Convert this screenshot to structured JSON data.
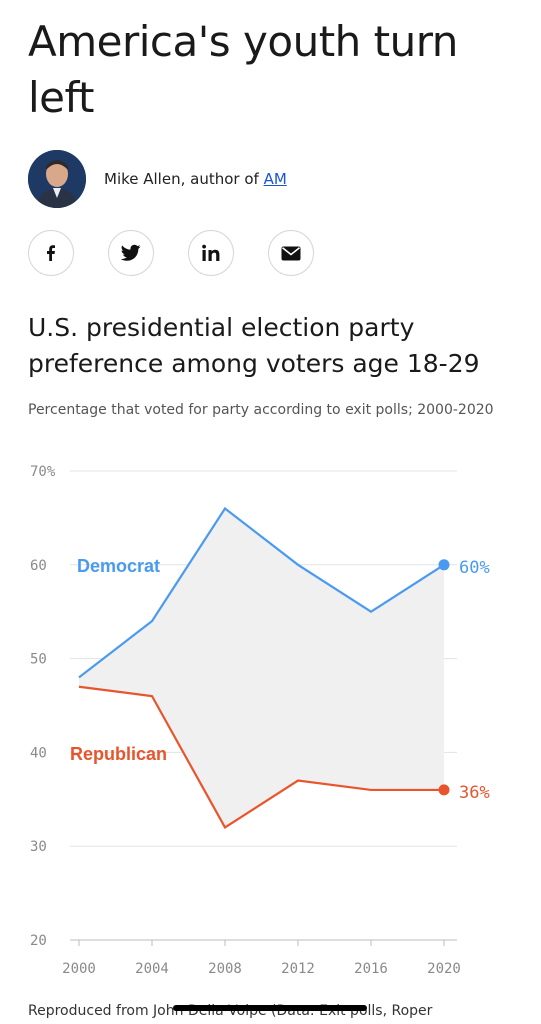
{
  "article": {
    "headline": "America's youth turn left",
    "byline_prefix": "Mike Allen, author of ",
    "byline_link": "AM"
  },
  "share": [
    {
      "name": "facebook",
      "icon": "facebook-icon"
    },
    {
      "name": "twitter",
      "icon": "twitter-icon"
    },
    {
      "name": "linkedin",
      "icon": "linkedin-icon"
    },
    {
      "name": "email",
      "icon": "email-icon"
    }
  ],
  "chart_data": {
    "type": "line",
    "title": "U.S. presidential election party preference among voters age 18-29",
    "subtitle": "Percentage that voted for party according to exit polls; 2000-2020",
    "x": [
      2000,
      2004,
      2008,
      2012,
      2016,
      2020
    ],
    "xlim": [
      2000,
      2020
    ],
    "ylim": [
      20,
      70
    ],
    "yticks": [
      20,
      30,
      40,
      50,
      60,
      70
    ],
    "ytick_labels": [
      "20",
      "30",
      "40",
      "50",
      "60",
      "70%"
    ],
    "xtick_labels": [
      "2000",
      "2004",
      "2008",
      "2012",
      "2016",
      "2020"
    ],
    "grid": true,
    "fill_between_series": true,
    "series": [
      {
        "name": "Democrat",
        "values": [
          48,
          54,
          66,
          60,
          55,
          60
        ],
        "color": "#4a9af0",
        "end_label": "60%"
      },
      {
        "name": "Republican",
        "values": [
          47,
          46,
          32,
          37,
          36,
          36
        ],
        "color": "#e8552d",
        "end_label": "36%"
      }
    ],
    "fill_color": "#f0f0f0",
    "grid_color": "#e3e3e3",
    "axis_label_color": "#8a8a8a"
  },
  "source": "Reproduced from John Della Volpe (Data: Exit polls, Roper"
}
